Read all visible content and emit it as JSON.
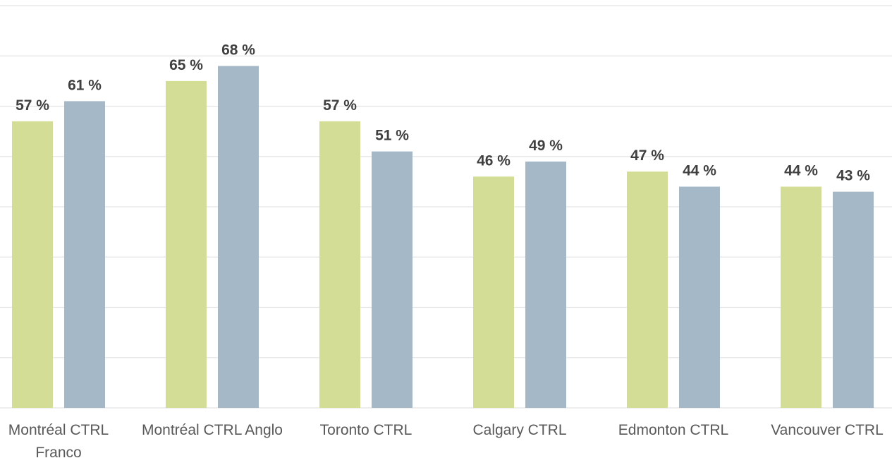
{
  "chart_data": {
    "type": "bar",
    "categories": [
      "Montréal CTRL Franco",
      "Montréal CTRL Anglo",
      "Toronto CTRL",
      "Calgary CTRL",
      "Edmonton CTRL",
      "Vancouver CTRL"
    ],
    "series": [
      {
        "color": "#d4dd96",
        "values": [
          57,
          65,
          57,
          46,
          47,
          44
        ],
        "value_labels": [
          "57 %",
          "65 %",
          "57 %",
          "46 %",
          "47 %",
          "44 %"
        ]
      },
      {
        "color": "#a5b8c8",
        "values": [
          61,
          68,
          51,
          49,
          44,
          43
        ],
        "value_labels": [
          "61 %",
          "68 %",
          "51 %",
          "49 %",
          "44 %",
          "43 %"
        ]
      }
    ],
    "ylim": [
      0,
      80
    ],
    "yticks": [
      0,
      10,
      20,
      30,
      40,
      50,
      60,
      70,
      80
    ],
    "grid": true
  }
}
